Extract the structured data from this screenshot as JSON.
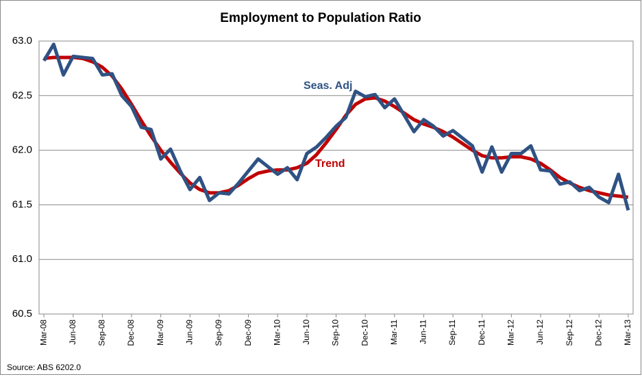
{
  "chart_data": {
    "type": "line",
    "title": "Employment to Population Ratio",
    "source": "Source: ABS 6202.0",
    "categories": [
      "Mar-08",
      null,
      null,
      "Jun-08",
      null,
      null,
      "Sep-08",
      null,
      null,
      "Dec-08",
      null,
      null,
      "Mar-09",
      null,
      null,
      "Jun-09",
      null,
      null,
      "Sep-09",
      null,
      null,
      "Dec-09",
      null,
      null,
      "Mar-10",
      null,
      null,
      "Jun-10",
      null,
      null,
      "Sep-10",
      null,
      null,
      "Dec-10",
      null,
      null,
      "Mar-11",
      null,
      null,
      "Jun-11",
      null,
      null,
      "Sep-11",
      null,
      null,
      "Dec-11",
      null,
      null,
      "Mar-12",
      null,
      null,
      "Jun-12",
      null,
      null,
      "Sep-12",
      null,
      null,
      "Dec-12",
      null,
      null,
      "Mar-13"
    ],
    "series": [
      {
        "name": "Trend",
        "color": "#c00000",
        "values": [
          62.84,
          62.85,
          62.85,
          62.85,
          62.84,
          62.81,
          62.76,
          62.68,
          62.56,
          62.42,
          62.27,
          62.13,
          62.0,
          61.89,
          61.79,
          61.7,
          61.64,
          61.61,
          61.61,
          61.63,
          61.68,
          61.74,
          61.79,
          61.81,
          61.82,
          61.82,
          61.84,
          61.88,
          61.96,
          62.07,
          62.19,
          62.32,
          62.42,
          62.47,
          62.48,
          62.45,
          62.4,
          62.34,
          62.28,
          62.24,
          62.21,
          62.17,
          62.12,
          62.06,
          62.0,
          61.95,
          61.93,
          61.93,
          61.94,
          61.94,
          61.92,
          61.88,
          61.82,
          61.75,
          61.7,
          61.66,
          61.63,
          61.61,
          61.59,
          61.58,
          61.57
        ]
      },
      {
        "name": "Seas. Adj",
        "color": "#2f5283",
        "values": [
          62.82,
          62.97,
          62.69,
          62.86,
          62.85,
          62.84,
          62.69,
          62.7,
          62.5,
          62.4,
          62.21,
          62.19,
          61.92,
          62.01,
          61.81,
          61.64,
          61.75,
          61.54,
          61.61,
          61.6,
          61.7,
          61.81,
          61.92,
          61.85,
          61.78,
          61.84,
          61.73,
          61.97,
          62.03,
          62.12,
          62.22,
          62.3,
          62.54,
          62.49,
          62.51,
          62.39,
          62.47,
          62.32,
          62.17,
          62.28,
          62.22,
          62.13,
          62.18,
          62.11,
          62.04,
          61.8,
          62.03,
          61.8,
          61.97,
          61.97,
          62.04,
          61.82,
          61.81,
          61.69,
          61.71,
          61.63,
          61.66,
          61.57,
          61.52,
          61.78,
          61.45
        ]
      }
    ],
    "ylim": [
      60.5,
      63
    ],
    "yticks": [
      {
        "value": 60.5,
        "label": "60.5"
      },
      {
        "value": 61,
        "label": "61.0"
      },
      {
        "value": 61.5,
        "label": "61.5"
      },
      {
        "value": 62,
        "label": "62.0"
      },
      {
        "value": 62.5,
        "label": "62.5"
      },
      {
        "value": 63,
        "label": "63.0"
      }
    ],
    "grid": true
  }
}
